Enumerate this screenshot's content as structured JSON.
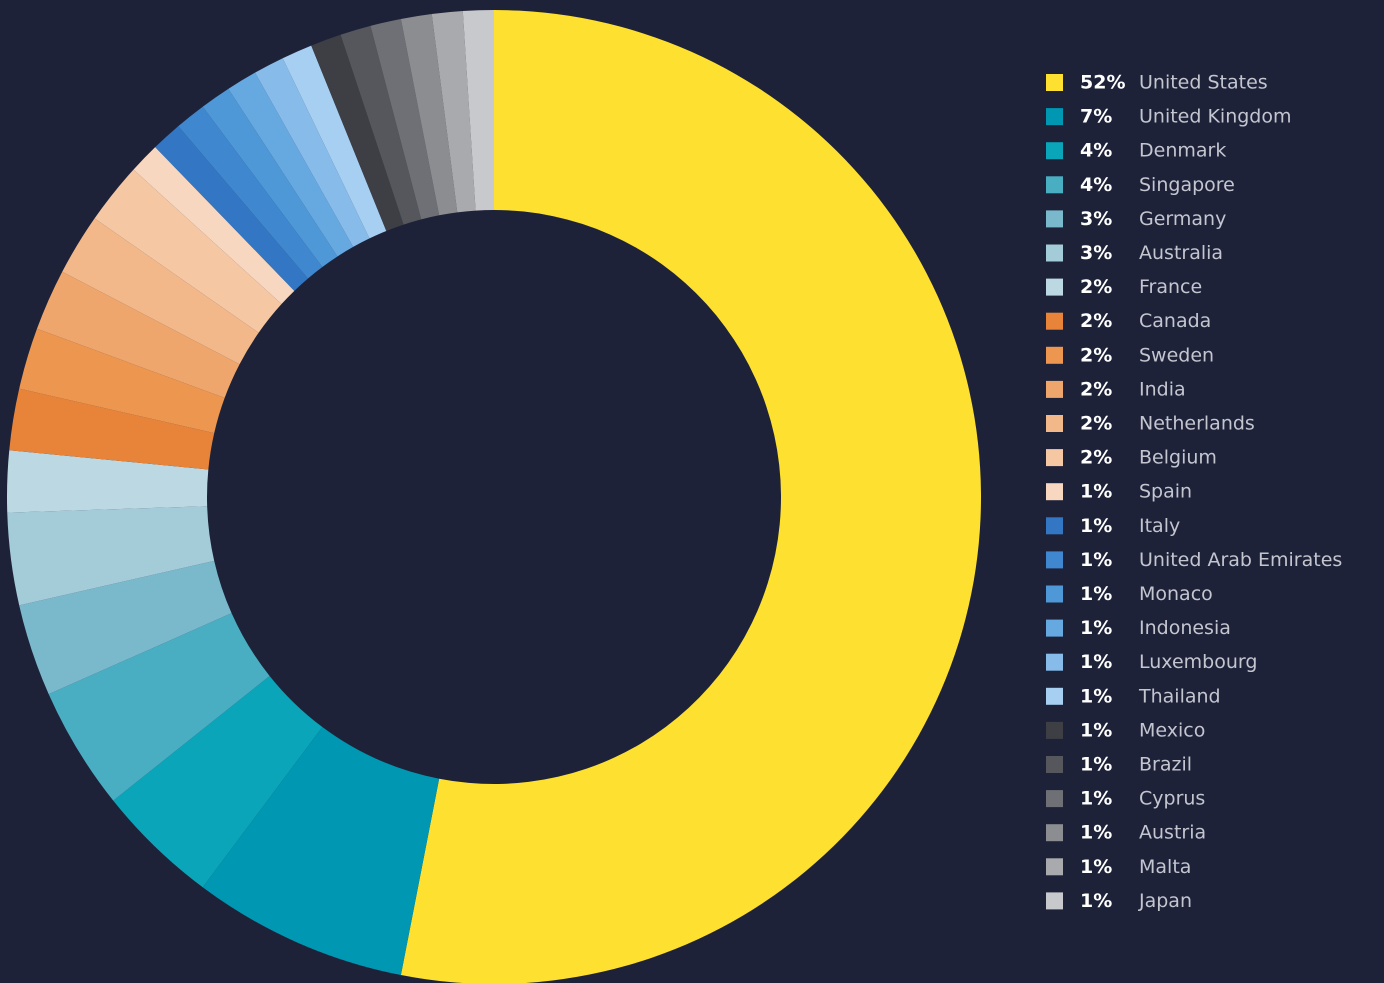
{
  "chart_data": {
    "type": "pie",
    "donut": true,
    "categories": [
      "United States",
      "United Kingdom",
      "Denmark",
      "Singapore",
      "Germany",
      "Australia",
      "France",
      "Canada",
      "Sweden",
      "India",
      "Netherlands",
      "Belgium",
      "Spain",
      "Italy",
      "United Arab Emirates",
      "Monaco",
      "Indonesia",
      "Luxembourg",
      "Thailand",
      "Mexico",
      "Brazil",
      "Cyprus",
      "Austria",
      "Malta",
      "Japan"
    ],
    "values": [
      52,
      7,
      4,
      4,
      3,
      3,
      2,
      2,
      2,
      2,
      2,
      2,
      1,
      1,
      1,
      1,
      1,
      1,
      1,
      1,
      1,
      1,
      1,
      1,
      1
    ],
    "value_labels": [
      "52%",
      "7%",
      "4%",
      "4%",
      "3%",
      "3%",
      "2%",
      "2%",
      "2%",
      "2%",
      "2%",
      "2%",
      "1%",
      "1%",
      "1%",
      "1%",
      "1%",
      "1%",
      "1%",
      "1%",
      "1%",
      "1%",
      "1%",
      "1%",
      "1%"
    ],
    "colors": [
      "#fde030",
      "#0097b2",
      "#0ba5ba",
      "#4aaec3",
      "#7ab9cc",
      "#a3cbd8",
      "#bcd9e3",
      "#e8843a",
      "#ec9650",
      "#efa66c",
      "#f2b88a",
      "#f5c7a3",
      "#f7d7bf",
      "#3377c4",
      "#3f88cf",
      "#4e98d8",
      "#65a9e0",
      "#86bbea",
      "#a7cff2",
      "#3d3f45",
      "#55575d",
      "#6e7075",
      "#8c8d91",
      "#a9aaae",
      "#c8c9cc"
    ]
  }
}
